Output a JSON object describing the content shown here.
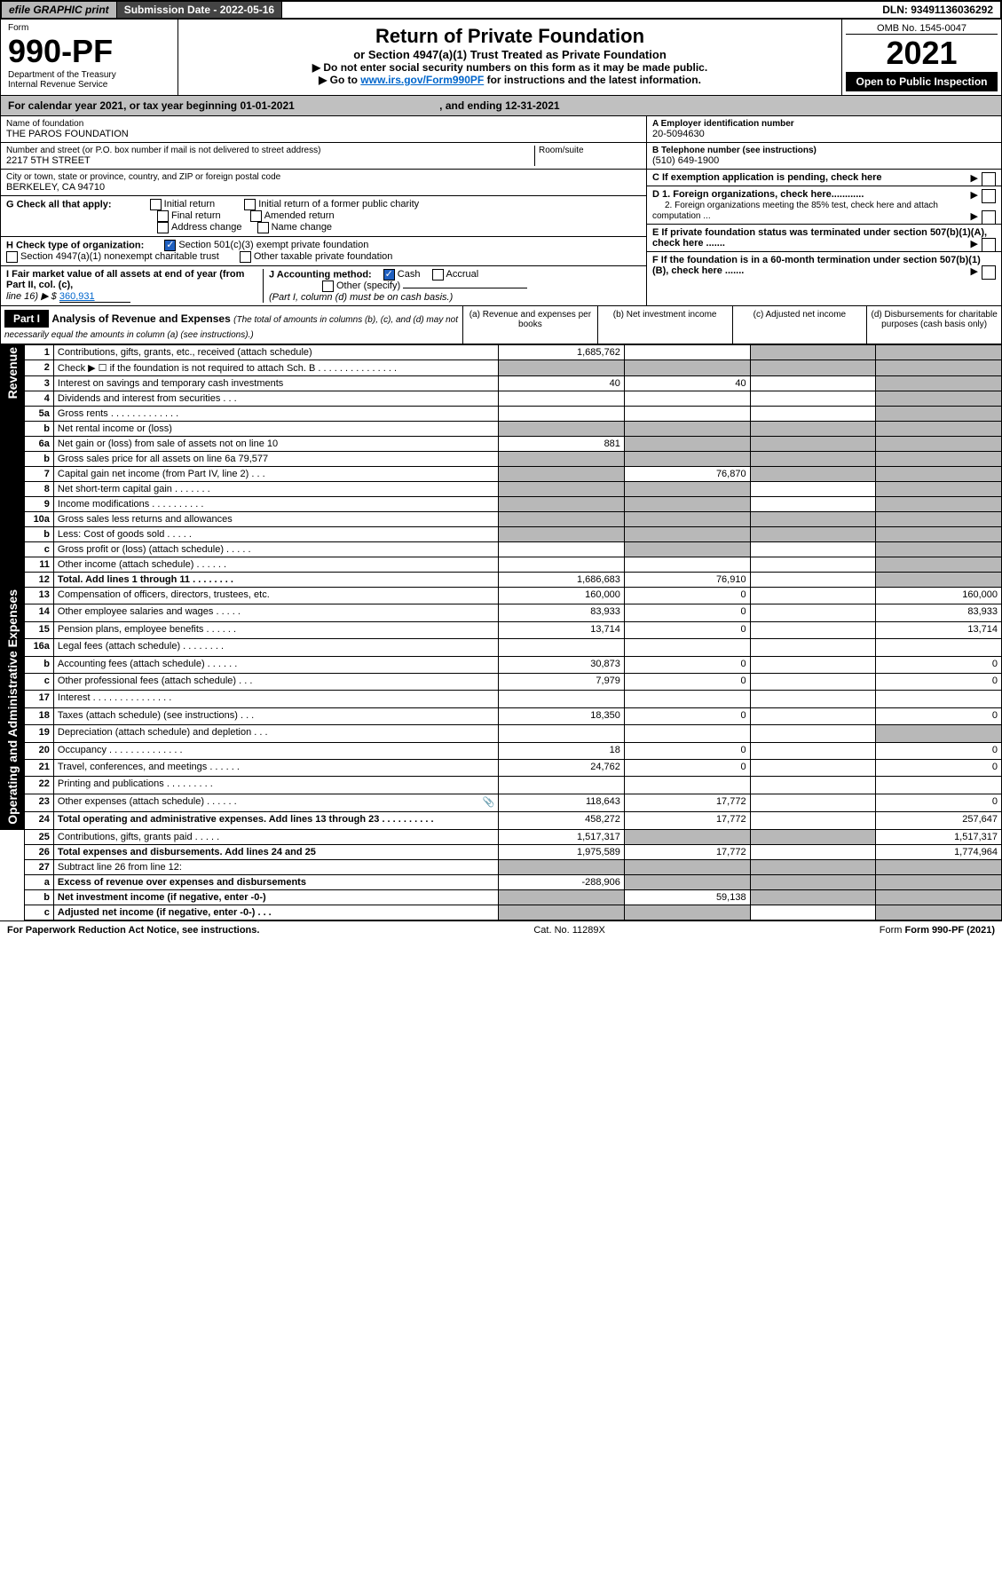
{
  "top": {
    "efile": "efile GRAPHIC print",
    "submission": "Submission Date - 2022-05-16",
    "dln": "DLN: 93491136036292"
  },
  "header": {
    "form_label": "Form",
    "form_no": "990-PF",
    "dept": "Department of the Treasury",
    "irs": "Internal Revenue Service",
    "title": "Return of Private Foundation",
    "subtitle": "or Section 4947(a)(1) Trust Treated as Private Foundation",
    "note1": "▶ Do not enter social security numbers on this form as it may be made public.",
    "note2_pre": "▶ Go to ",
    "note2_link": "www.irs.gov/Form990PF",
    "note2_post": " for instructions and the latest information.",
    "omb": "OMB No. 1545-0047",
    "year": "2021",
    "open": "Open to Public Inspection"
  },
  "calyear": {
    "text": "For calendar year 2021, or tax year beginning 01-01-2021",
    "ending": ", and ending 12-31-2021"
  },
  "info": {
    "name_label": "Name of foundation",
    "name": "THE PAROS FOUNDATION",
    "addr_label": "Number and street (or P.O. box number if mail is not delivered to street address)",
    "addr": "2217 5TH STREET",
    "room_label": "Room/suite",
    "city_label": "City or town, state or province, country, and ZIP or foreign postal code",
    "city": "BERKELEY, CA  94710",
    "ein_label": "A Employer identification number",
    "ein": "20-5094630",
    "phone_label": "B Telephone number (see instructions)",
    "phone": "(510) 649-1900",
    "c_label": "C If exemption application is pending, check here",
    "d1": "D 1. Foreign organizations, check here............",
    "d2": "2. Foreign organizations meeting the 85% test, check here and attach computation ...",
    "e_label": "E  If private foundation status was terminated under section 507(b)(1)(A), check here .......",
    "f_label": "F  If the foundation is in a 60-month termination under section 507(b)(1)(B), check here .......",
    "g_label": "G Check all that apply:",
    "g_opts": [
      "Initial return",
      "Initial return of a former public charity",
      "Final return",
      "Amended return",
      "Address change",
      "Name change"
    ],
    "h_label": "H Check type of organization:",
    "h_501c3": "Section 501(c)(3) exempt private foundation",
    "h_4947": "Section 4947(a)(1) nonexempt charitable trust",
    "h_other": "Other taxable private foundation",
    "i_label": "I Fair market value of all assets at end of year (from Part II, col. (c),",
    "i_line": "line 16) ▶ $",
    "i_val": "360,931",
    "j_label": "J Accounting method:",
    "j_cash": "Cash",
    "j_accrual": "Accrual",
    "j_other": "Other (specify)",
    "j_note": "(Part I, column (d) must be on cash basis.)"
  },
  "part1": {
    "label": "Part I",
    "title": "Analysis of Revenue and Expenses",
    "note": "(The total of amounts in columns (b), (c), and (d) may not necessarily equal the amounts in column (a) (see instructions).)",
    "cols": {
      "a": "(a)   Revenue and expenses per books",
      "b": "(b)   Net investment income",
      "c": "(c)   Adjusted net income",
      "d": "(d)   Disbursements for charitable purposes (cash basis only)"
    }
  },
  "sides": {
    "rev": "Revenue",
    "op": "Operating and Administrative Expenses"
  },
  "rows": [
    {
      "n": "1",
      "d": "Contributions, gifts, grants, etc., received (attach schedule)",
      "a": "1,685,762",
      "b": "",
      "c": "g",
      "dcol": "g"
    },
    {
      "n": "2",
      "d": "Check ▶ ☐ if the foundation is not required to attach Sch. B   .  .  .  .  .  .  .  .  .  .  .  .  .  .  .",
      "a": "g",
      "b": "g",
      "c": "g",
      "dcol": "g"
    },
    {
      "n": "3",
      "d": "Interest on savings and temporary cash investments",
      "a": "40",
      "b": "40",
      "c": "",
      "dcol": "g"
    },
    {
      "n": "4",
      "d": "Dividends and interest from securities   .  .  .",
      "a": "",
      "b": "",
      "c": "",
      "dcol": "g"
    },
    {
      "n": "5a",
      "d": "Gross rents    .  .  .  .  .  .  .  .  .  .  .  .  .",
      "a": "",
      "b": "",
      "c": "",
      "dcol": "g"
    },
    {
      "n": "b",
      "d": "Net rental income or (loss)  ",
      "a": "g",
      "b": "g",
      "c": "g",
      "dcol": "g"
    },
    {
      "n": "6a",
      "d": "Net gain or (loss) from sale of assets not on line 10",
      "a": "881",
      "b": "g",
      "c": "g",
      "dcol": "g"
    },
    {
      "n": "b",
      "d": "Gross sales price for all assets on line 6a              79,577",
      "a": "g",
      "b": "g",
      "c": "g",
      "dcol": "g"
    },
    {
      "n": "7",
      "d": "Capital gain net income (from Part IV, line 2)   .  .  .",
      "a": "g",
      "b": "76,870",
      "c": "g",
      "dcol": "g"
    },
    {
      "n": "8",
      "d": "Net short-term capital gain   .  .  .  .  .  .  .",
      "a": "g",
      "b": "g",
      "c": "",
      "dcol": "g"
    },
    {
      "n": "9",
      "d": "Income modifications .  .  .  .  .  .  .  .  .  .",
      "a": "g",
      "b": "g",
      "c": "",
      "dcol": "g"
    },
    {
      "n": "10a",
      "d": "Gross sales less returns and allowances",
      "a": "g",
      "b": "g",
      "c": "g",
      "dcol": "g"
    },
    {
      "n": "b",
      "d": "Less: Cost of goods sold    .  .  .  .  .",
      "a": "g",
      "b": "g",
      "c": "g",
      "dcol": "g"
    },
    {
      "n": "c",
      "d": "Gross profit or (loss) (attach schedule)    .  .  .  .  .",
      "a": "",
      "b": "g",
      "c": "",
      "dcol": "g"
    },
    {
      "n": "11",
      "d": "Other income (attach schedule)    .  .  .  .  .  .",
      "a": "",
      "b": "",
      "c": "",
      "dcol": "g"
    },
    {
      "n": "12",
      "d": "Total. Add lines 1 through 11   .  .  .  .  .  .  .  .",
      "a": "1,686,683",
      "b": "76,910",
      "c": "",
      "dcol": "g",
      "bold": true
    },
    {
      "n": "13",
      "d": "Compensation of officers, directors, trustees, etc.",
      "a": "160,000",
      "b": "0",
      "c": "",
      "dcol": "160,000"
    },
    {
      "n": "14",
      "d": "Other employee salaries and wages   .  .  .  .  .",
      "a": "83,933",
      "b": "0",
      "c": "",
      "dcol": "83,933"
    },
    {
      "n": "15",
      "d": "Pension plans, employee benefits  .  .  .  .  .  .",
      "a": "13,714",
      "b": "0",
      "c": "",
      "dcol": "13,714"
    },
    {
      "n": "16a",
      "d": "Legal fees (attach schedule)  .  .  .  .  .  .  .  .",
      "a": "",
      "b": "",
      "c": "",
      "dcol": ""
    },
    {
      "n": "b",
      "d": "Accounting fees (attach schedule)  .  .  .  .  .  .",
      "a": "30,873",
      "b": "0",
      "c": "",
      "dcol": "0"
    },
    {
      "n": "c",
      "d": "Other professional fees (attach schedule)   .  .  .",
      "a": "7,979",
      "b": "0",
      "c": "",
      "dcol": "0"
    },
    {
      "n": "17",
      "d": "Interest  .  .  .  .  .  .  .  .  .  .  .  .  .  .  .",
      "a": "",
      "b": "",
      "c": "",
      "dcol": ""
    },
    {
      "n": "18",
      "d": "Taxes (attach schedule) (see instructions)   .  .  .",
      "a": "18,350",
      "b": "0",
      "c": "",
      "dcol": "0"
    },
    {
      "n": "19",
      "d": "Depreciation (attach schedule) and depletion   .  .  .",
      "a": "",
      "b": "",
      "c": "",
      "dcol": "g"
    },
    {
      "n": "20",
      "d": "Occupancy .  .  .  .  .  .  .  .  .  .  .  .  .  .",
      "a": "18",
      "b": "0",
      "c": "",
      "dcol": "0"
    },
    {
      "n": "21",
      "d": "Travel, conferences, and meetings .  .  .  .  .  .",
      "a": "24,762",
      "b": "0",
      "c": "",
      "dcol": "0"
    },
    {
      "n": "22",
      "d": "Printing and publications  .  .  .  .  .  .  .  .  .",
      "a": "",
      "b": "",
      "c": "",
      "dcol": ""
    },
    {
      "n": "23",
      "d": "Other expenses (attach schedule)  .  .  .  .  .  .",
      "a": "118,643",
      "b": "17,772",
      "c": "",
      "dcol": "0",
      "icon": true
    },
    {
      "n": "24",
      "d": "Total operating and administrative expenses. Add lines 13 through 23   .  .  .  .  .  .  .  .  .  .",
      "a": "458,272",
      "b": "17,772",
      "c": "",
      "dcol": "257,647",
      "bold": true
    },
    {
      "n": "25",
      "d": "Contributions, gifts, grants paid    .  .  .  .  .",
      "a": "1,517,317",
      "b": "g",
      "c": "g",
      "dcol": "1,517,317"
    },
    {
      "n": "26",
      "d": "Total expenses and disbursements. Add lines 24 and 25",
      "a": "1,975,589",
      "b": "17,772",
      "c": "",
      "dcol": "1,774,964",
      "bold": true
    },
    {
      "n": "27",
      "d": "Subtract line 26 from line 12:",
      "a": "g",
      "b": "g",
      "c": "g",
      "dcol": "g"
    },
    {
      "n": "a",
      "d": "Excess of revenue over expenses and disbursements",
      "a": "-288,906",
      "b": "g",
      "c": "g",
      "dcol": "g",
      "bold": true
    },
    {
      "n": "b",
      "d": "Net investment income (if negative, enter -0-)",
      "a": "g",
      "b": "59,138",
      "c": "g",
      "dcol": "g",
      "bold": true
    },
    {
      "n": "c",
      "d": "Adjusted net income (if negative, enter -0-)   .  .  .",
      "a": "g",
      "b": "g",
      "c": "",
      "dcol": "g",
      "bold": true
    }
  ],
  "footer": {
    "left": "For Paperwork Reduction Act Notice, see instructions.",
    "mid": "Cat. No. 11289X",
    "right": "Form 990-PF (2021)"
  }
}
